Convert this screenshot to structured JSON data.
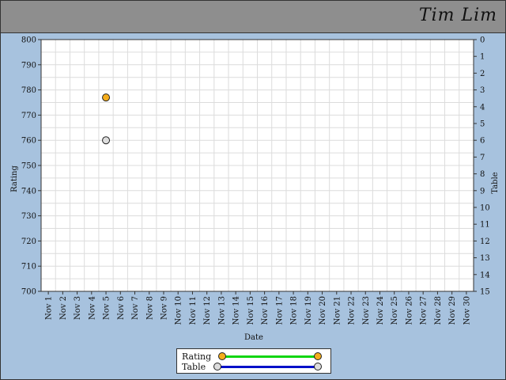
{
  "header": {
    "name": "Tim Lim"
  },
  "chart_data": {
    "type": "scatter",
    "xlabel": "Date",
    "ylabel": "Rating",
    "y2label": "Table",
    "categories": [
      "Nov 1",
      "Nov 2",
      "Nov 3",
      "Nov 4",
      "Nov 5",
      "Nov 6",
      "Nov 7",
      "Nov 8",
      "Nov 9",
      "Nov 10",
      "Nov 11",
      "Nov 12",
      "Nov 13",
      "Nov 14",
      "Nov 15",
      "Nov 16",
      "Nov 17",
      "Nov 18",
      "Nov 19",
      "Nov 20",
      "Nov 21",
      "Nov 22",
      "Nov 23",
      "Nov 24",
      "Nov 25",
      "Nov 26",
      "Nov 27",
      "Nov 28",
      "Nov 29",
      "Nov 30"
    ],
    "ylim": [
      700,
      800
    ],
    "yticks": [
      700,
      710,
      720,
      730,
      740,
      750,
      760,
      770,
      780,
      790,
      800
    ],
    "y2lim": [
      0,
      15
    ],
    "y2_reversed": true,
    "y2ticks": [
      0,
      1,
      2,
      3,
      4,
      5,
      6,
      7,
      8,
      9,
      10,
      11,
      12,
      13,
      14,
      15
    ],
    "grid": true,
    "legend_position": "bottom",
    "series": [
      {
        "name": "Rating",
        "axis": "left",
        "color": "#f5ad1b",
        "line_color": "#11d611",
        "points": [
          {
            "x": "Nov 5",
            "y": 777
          }
        ]
      },
      {
        "name": "Table",
        "axis": "right",
        "color": "#dddddd",
        "line_color": "#0010c8",
        "points": [
          {
            "x": "Nov 5",
            "y": 6
          }
        ]
      }
    ]
  }
}
